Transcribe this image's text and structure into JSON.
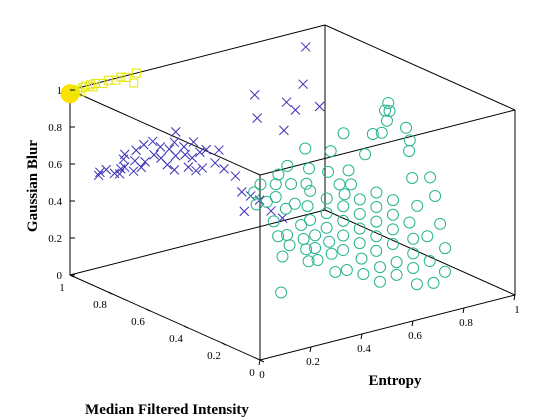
{
  "chart_data": {
    "type": "scatter",
    "projection": "3d",
    "xlabel": "Entropy",
    "ylabel": "Median Filtered Intensity",
    "zlabel": "Gaussian Blur",
    "xlim": [
      0,
      1
    ],
    "ylim": [
      0,
      1
    ],
    "zlim": [
      0,
      1
    ],
    "x_ticks": [
      "0",
      "0.2",
      "0.4",
      "0.6",
      "0.8",
      "1"
    ],
    "y_ticks": [
      "0",
      "0.2",
      "0.4",
      "0.6",
      "0.8",
      "1"
    ],
    "z_ticks": [
      "0",
      "0.2",
      "0.4",
      "0.6",
      "0.8",
      "1"
    ],
    "grid": false,
    "legend": "none",
    "series": [
      {
        "marker": "square",
        "color": "#e6e600",
        "highlight_point": [
          0.0,
          1.0,
          0.98
        ],
        "highlight_color": "#ffe100",
        "points": [
          [
            0.01,
            1.0,
            0.98
          ],
          [
            0.02,
            1.0,
            0.985
          ],
          [
            0.03,
            1.0,
            0.99
          ],
          [
            0.05,
            1.0,
            0.995
          ],
          [
            0.06,
            1.0,
            1.0
          ],
          [
            0.08,
            1.0,
            1.0
          ],
          [
            0.1,
            1.0,
            1.0
          ],
          [
            0.13,
            1.0,
            0.99
          ],
          [
            0.15,
            1.0,
            1.0
          ],
          [
            0.18,
            1.0,
            0.99
          ],
          [
            0.2,
            1.0,
            1.0
          ],
          [
            0.22,
            1.0,
            0.99
          ],
          [
            0.25,
            1.0,
            0.95
          ],
          [
            0.26,
            1.0,
            1.0
          ],
          [
            0.04,
            1.0,
            0.975
          ],
          [
            0.09,
            1.0,
            0.985
          ]
        ]
      },
      {
        "marker": "x",
        "color": "#3a2fb5",
        "points": [
          [
            0.06,
            0.93,
            0.55
          ],
          [
            0.08,
            0.95,
            0.55
          ],
          [
            0.09,
            0.93,
            0.57
          ],
          [
            0.1,
            0.9,
            0.56
          ],
          [
            0.12,
            0.9,
            0.55
          ],
          [
            0.11,
            0.88,
            0.59
          ],
          [
            0.14,
            0.9,
            0.58
          ],
          [
            0.15,
            0.92,
            0.61
          ],
          [
            0.16,
            0.88,
            0.56
          ],
          [
            0.18,
            0.9,
            0.6
          ],
          [
            0.17,
            0.94,
            0.62
          ],
          [
            0.19,
            0.88,
            0.57
          ],
          [
            0.2,
            0.92,
            0.64
          ],
          [
            0.22,
            0.9,
            0.58
          ],
          [
            0.24,
            0.88,
            0.62
          ],
          [
            0.23,
            0.92,
            0.66
          ],
          [
            0.25,
            0.9,
            0.68
          ],
          [
            0.26,
            0.87,
            0.6
          ],
          [
            0.28,
            0.9,
            0.64
          ],
          [
            0.27,
            0.85,
            0.57
          ],
          [
            0.3,
            0.88,
            0.63
          ],
          [
            0.29,
            0.84,
            0.54
          ],
          [
            0.31,
            0.86,
            0.6
          ],
          [
            0.32,
            0.88,
            0.66
          ],
          [
            0.34,
            0.85,
            0.6
          ],
          [
            0.33,
            0.82,
            0.55
          ],
          [
            0.35,
            0.87,
            0.63
          ],
          [
            0.36,
            0.84,
            0.58
          ],
          [
            0.34,
            0.9,
            0.7
          ],
          [
            0.37,
            0.8,
            0.54
          ],
          [
            0.38,
            0.86,
            0.65
          ],
          [
            0.36,
            0.82,
            0.52
          ],
          [
            0.39,
            0.84,
            0.6
          ],
          [
            0.4,
            0.82,
            0.62
          ],
          [
            0.42,
            0.8,
            0.55
          ],
          [
            0.44,
            0.78,
            0.52
          ],
          [
            0.45,
            0.82,
            0.6
          ],
          [
            0.47,
            0.76,
            0.48
          ],
          [
            0.48,
            0.74,
            0.4
          ],
          [
            0.5,
            0.72,
            0.38
          ],
          [
            0.52,
            0.7,
            0.36
          ],
          [
            0.55,
            0.68,
            0.3
          ],
          [
            0.58,
            0.66,
            0.26
          ],
          [
            0.46,
            0.7,
            0.32
          ],
          [
            0.6,
            0.82,
            0.72
          ],
          [
            0.62,
            0.86,
            0.82
          ],
          [
            0.7,
            0.8,
            0.78
          ],
          [
            0.72,
            0.78,
            0.74
          ],
          [
            0.78,
            0.82,
            0.84
          ],
          [
            0.8,
            0.76,
            0.74
          ],
          [
            0.85,
            0.9,
            0.98
          ],
          [
            0.66,
            0.76,
            0.66
          ]
        ]
      },
      {
        "marker": "circle",
        "color": "#26b58e",
        "points": [
          [
            0.12,
            0.05,
            0.3
          ],
          [
            0.2,
            0.15,
            0.42
          ],
          [
            0.22,
            0.2,
            0.5
          ],
          [
            0.25,
            0.18,
            0.45
          ],
          [
            0.24,
            0.25,
            0.55
          ],
          [
            0.27,
            0.22,
            0.48
          ],
          [
            0.28,
            0.12,
            0.38
          ],
          [
            0.3,
            0.16,
            0.42
          ],
          [
            0.31,
            0.28,
            0.58
          ],
          [
            0.32,
            0.2,
            0.45
          ],
          [
            0.34,
            0.24,
            0.5
          ],
          [
            0.33,
            0.14,
            0.36
          ],
          [
            0.35,
            0.18,
            0.4
          ],
          [
            0.36,
            0.3,
            0.58
          ],
          [
            0.38,
            0.22,
            0.44
          ],
          [
            0.37,
            0.1,
            0.3
          ],
          [
            0.39,
            0.26,
            0.5
          ],
          [
            0.4,
            0.16,
            0.36
          ],
          [
            0.41,
            0.3,
            0.55
          ],
          [
            0.42,
            0.2,
            0.4
          ],
          [
            0.43,
            0.12,
            0.28
          ],
          [
            0.44,
            0.24,
            0.45
          ],
          [
            0.45,
            0.34,
            0.6
          ],
          [
            0.46,
            0.18,
            0.35
          ],
          [
            0.47,
            0.28,
            0.5
          ],
          [
            0.48,
            0.1,
            0.25
          ],
          [
            0.49,
            0.22,
            0.4
          ],
          [
            0.5,
            0.32,
            0.55
          ],
          [
            0.51,
            0.15,
            0.3
          ],
          [
            0.52,
            0.26,
            0.45
          ],
          [
            0.53,
            0.08,
            0.2
          ],
          [
            0.54,
            0.2,
            0.35
          ],
          [
            0.55,
            0.3,
            0.5
          ],
          [
            0.56,
            0.12,
            0.25
          ],
          [
            0.57,
            0.24,
            0.4
          ],
          [
            0.58,
            0.36,
            0.58
          ],
          [
            0.59,
            0.18,
            0.3
          ],
          [
            0.6,
            0.28,
            0.45
          ],
          [
            0.61,
            0.1,
            0.2
          ],
          [
            0.62,
            0.22,
            0.35
          ],
          [
            0.63,
            0.32,
            0.5
          ],
          [
            0.64,
            0.14,
            0.24
          ],
          [
            0.65,
            0.26,
            0.4
          ],
          [
            0.66,
            0.06,
            0.15
          ],
          [
            0.67,
            0.2,
            0.3
          ],
          [
            0.68,
            0.3,
            0.45
          ],
          [
            0.69,
            0.12,
            0.2
          ],
          [
            0.7,
            0.24,
            0.35
          ],
          [
            0.71,
            0.34,
            0.5
          ],
          [
            0.72,
            0.16,
            0.25
          ],
          [
            0.73,
            0.28,
            0.4
          ],
          [
            0.74,
            0.08,
            0.12
          ],
          [
            0.75,
            0.2,
            0.3
          ],
          [
            0.76,
            0.32,
            0.45
          ],
          [
            0.77,
            0.14,
            0.2
          ],
          [
            0.78,
            0.26,
            0.35
          ],
          [
            0.8,
            0.1,
            0.15
          ],
          [
            0.82,
            0.22,
            0.28
          ],
          [
            0.84,
            0.3,
            0.4
          ],
          [
            0.86,
            0.18,
            0.22
          ],
          [
            0.88,
            0.38,
            0.5
          ],
          [
            0.9,
            0.26,
            0.3
          ],
          [
            0.92,
            0.45,
            0.6
          ],
          [
            0.94,
            0.34,
            0.4
          ],
          [
            0.96,
            0.5,
            0.62
          ],
          [
            0.98,
            0.42,
            0.45
          ],
          [
            0.9,
            0.55,
            0.78
          ],
          [
            0.85,
            0.5,
            0.7
          ],
          [
            0.8,
            0.48,
            0.72
          ],
          [
            0.74,
            0.44,
            0.65
          ],
          [
            0.7,
            0.5,
            0.75
          ],
          [
            0.66,
            0.42,
            0.6
          ],
          [
            0.62,
            0.46,
            0.7
          ],
          [
            0.58,
            0.42,
            0.62
          ],
          [
            0.55,
            0.5,
            0.72
          ],
          [
            0.52,
            0.44,
            0.65
          ],
          [
            0.48,
            0.4,
            0.6
          ],
          [
            0.45,
            0.46,
            0.68
          ],
          [
            0.42,
            0.4,
            0.62
          ],
          [
            0.4,
            0.44,
            0.66
          ],
          [
            0.36,
            0.4,
            0.64
          ],
          [
            0.33,
            0.36,
            0.6
          ],
          [
            0.3,
            0.4,
            0.66
          ],
          [
            0.28,
            0.34,
            0.6
          ],
          [
            0.26,
            0.38,
            0.64
          ],
          [
            0.24,
            0.34,
            0.6
          ],
          [
            0.95,
            0.6,
            0.78
          ],
          [
            0.99,
            0.56,
            0.65
          ],
          [
            0.97,
            0.62,
            0.72
          ],
          [
            0.93,
            0.58,
            0.7
          ],
          [
            0.6,
            0.36,
            0.52
          ],
          [
            0.64,
            0.38,
            0.55
          ]
        ]
      }
    ]
  }
}
